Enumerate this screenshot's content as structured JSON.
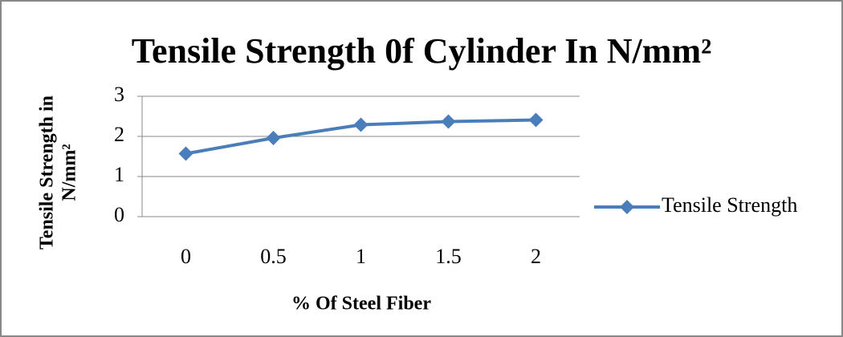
{
  "chart_data": {
    "type": "line",
    "title": "Tensile Strength 0f Cylinder In N/mm²",
    "x_label": "% Of Steel Fiber",
    "y_label": [
      "Tensile Strength in",
      "N/mm²"
    ],
    "categories": [
      "0",
      "0.5",
      "1",
      "1.5",
      "2"
    ],
    "series": [
      {
        "name": "Tensile Strength",
        "color": "#4a7ebb",
        "values": [
          1.57,
          1.96,
          2.29,
          2.37,
          2.41
        ]
      }
    ],
    "ylim": [
      0,
      3
    ],
    "yticks": [
      0,
      1,
      2,
      3
    ],
    "grid": true,
    "legend": "right"
  }
}
